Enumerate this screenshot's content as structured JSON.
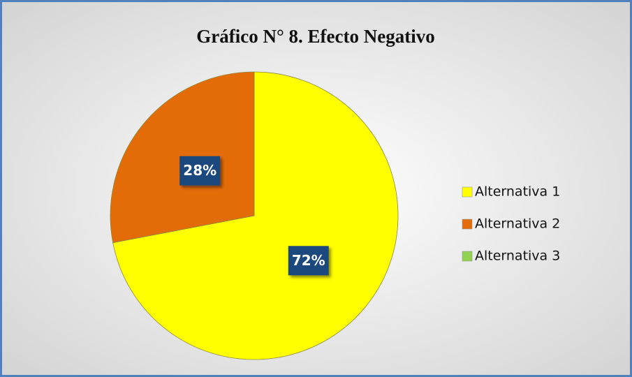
{
  "chart_data": {
    "type": "pie",
    "title": "Gráfico N° 8. Efecto Negativo",
    "categories": [
      "Alternativa 1",
      "Alternativa 2",
      "Alternativa 3"
    ],
    "values": [
      72,
      28,
      0
    ],
    "value_labels": [
      "72%",
      "28%",
      null
    ],
    "colors": [
      "#ffff00",
      "#e36c09",
      "#92d050"
    ],
    "legend": "right"
  }
}
